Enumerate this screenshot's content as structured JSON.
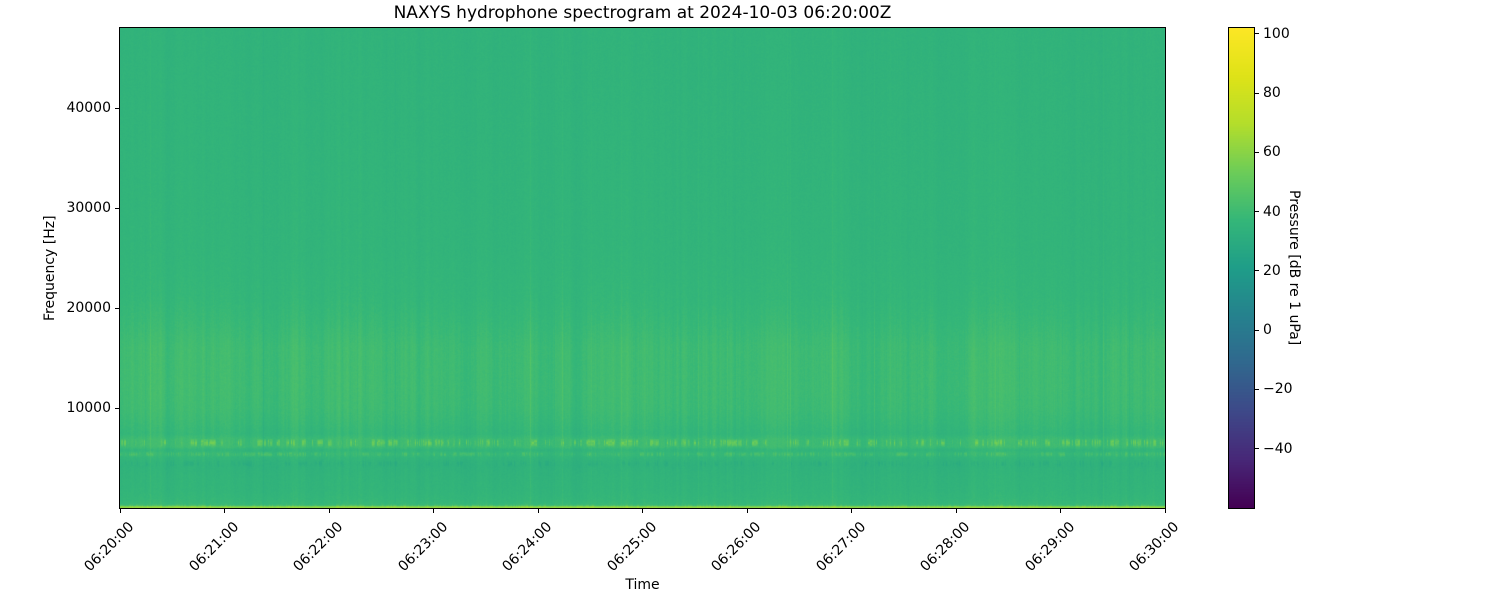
{
  "chart_data": {
    "type": "heatmap",
    "title": "NAXYS hydrophone spectrogram at 2024-10-03 06:20:00Z",
    "xlabel": "Time",
    "ylabel": "Frequency [Hz]",
    "x_tick_labels": [
      "06:20:00",
      "06:21:00",
      "06:22:00",
      "06:23:00",
      "06:24:00",
      "06:25:00",
      "06:26:00",
      "06:27:00",
      "06:28:00",
      "06:29:00",
      "06:30:00"
    ],
    "y_tick_values": [
      10000,
      20000,
      30000,
      40000
    ],
    "ylim": [
      0,
      48000
    ],
    "grid": false,
    "legend": null,
    "colorbar": {
      "label": "Pressure [dB re 1 uPa]",
      "tick_values": [
        100,
        80,
        60,
        40,
        20,
        0,
        -20,
        -40
      ],
      "vmin": -60,
      "vmax": 102,
      "colormap": "viridis",
      "colormap_stops": [
        [
          0.0,
          [
            68,
            1,
            84
          ]
        ],
        [
          0.1,
          [
            72,
            40,
            120
          ]
        ],
        [
          0.2,
          [
            62,
            73,
            137
          ]
        ],
        [
          0.3,
          [
            49,
            104,
            142
          ]
        ],
        [
          0.4,
          [
            38,
            130,
            142
          ]
        ],
        [
          0.5,
          [
            31,
            158,
            137
          ]
        ],
        [
          0.6,
          [
            53,
            183,
            121
          ]
        ],
        [
          0.7,
          [
            109,
            205,
            89
          ]
        ],
        [
          0.8,
          [
            180,
            222,
            44
          ]
        ],
        [
          0.9,
          [
            223,
            227,
            24
          ]
        ],
        [
          1.0,
          [
            253,
            231,
            37
          ]
        ]
      ]
    },
    "heatmap_model": {
      "seed": 7,
      "noise_db": 1.1,
      "freq_profile_db": [
        [
          0,
          62
        ],
        [
          120,
          62
        ],
        [
          260,
          40
        ],
        [
          900,
          38
        ],
        [
          1800,
          37
        ],
        [
          3200,
          36.5
        ],
        [
          4300,
          35.5
        ],
        [
          5000,
          37
        ],
        [
          5400,
          39.5
        ],
        [
          5800,
          37
        ],
        [
          6100,
          41
        ],
        [
          6900,
          41
        ],
        [
          7400,
          38
        ],
        [
          8500,
          39.5
        ],
        [
          10000,
          41
        ],
        [
          12000,
          41.5
        ],
        [
          16000,
          41.5
        ],
        [
          18500,
          39.5
        ],
        [
          21000,
          38
        ],
        [
          26000,
          37
        ],
        [
          34000,
          36.6
        ],
        [
          48000,
          36
        ]
      ],
      "stripe_gain_profile": [
        [
          0,
          0.55
        ],
        [
          3000,
          0.7
        ],
        [
          5000,
          0.85
        ],
        [
          6500,
          1.1
        ],
        [
          8000,
          1.2
        ],
        [
          16000,
          1.2
        ],
        [
          19000,
          0.85
        ],
        [
          23000,
          0.5
        ],
        [
          48000,
          0.42
        ]
      ],
      "speckle_bands": [
        {
          "f0": 6100,
          "f1": 6950,
          "boost_db": 20,
          "density": 0.45
        },
        {
          "f0": 5100,
          "f1": 5650,
          "boost_db": 10,
          "density": 0.4
        },
        {
          "f0": 4100,
          "f1": 4800,
          "boost_db": -6,
          "density": 0.35
        },
        {
          "f0": 0,
          "f1": 400,
          "boost_db": 9,
          "density": 0.6
        }
      ]
    }
  }
}
